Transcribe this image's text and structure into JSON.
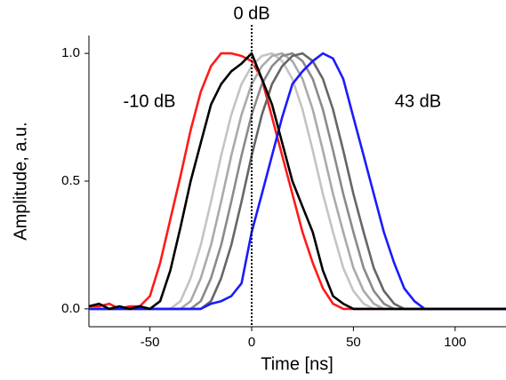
{
  "chart_data": {
    "type": "line",
    "xlabel": "Time [ns]",
    "ylabel": "Amplitude, a.u.",
    "x": [
      -80,
      -75,
      -70,
      -65,
      -60,
      -55,
      -50,
      -45,
      -40,
      -35,
      -30,
      -25,
      -20,
      -15,
      -10,
      -5,
      0,
      5,
      10,
      15,
      20,
      25,
      30,
      35,
      40,
      45,
      50,
      55,
      60,
      65,
      70,
      75,
      80,
      85,
      90,
      95,
      100,
      105,
      110,
      115,
      120,
      125
    ],
    "series": [
      {
        "name": "-10 dB",
        "color": "#ff1a1a",
        "values": [
          0.01,
          0.01,
          0.02,
          0.0,
          0.01,
          0.01,
          0.05,
          0.18,
          0.35,
          0.52,
          0.7,
          0.85,
          0.95,
          1.0,
          1.0,
          0.99,
          0.97,
          0.9,
          0.75,
          0.6,
          0.45,
          0.3,
          0.18,
          0.08,
          0.02,
          0,
          0,
          0,
          0,
          0,
          0,
          0,
          0,
          0,
          0,
          0,
          0,
          0,
          0,
          0,
          0,
          0
        ]
      },
      {
        "color": "#c4c4c4",
        "values": [
          0,
          0,
          0,
          0,
          0,
          0,
          0,
          0,
          0,
          0.03,
          0.12,
          0.25,
          0.42,
          0.6,
          0.76,
          0.88,
          0.95,
          0.99,
          1.0,
          0.97,
          0.9,
          0.78,
          0.62,
          0.45,
          0.3,
          0.16,
          0.07,
          0.02,
          0,
          0,
          0,
          0,
          0,
          0,
          0,
          0,
          0,
          0,
          0,
          0,
          0,
          0
        ]
      },
      {
        "color": "#aaaaaa",
        "values": [
          0,
          0,
          0,
          0,
          0,
          0,
          0,
          0,
          0,
          0,
          0.03,
          0.12,
          0.25,
          0.42,
          0.6,
          0.76,
          0.88,
          0.95,
          0.99,
          1.0,
          0.97,
          0.9,
          0.78,
          0.62,
          0.45,
          0.3,
          0.16,
          0.07,
          0.02,
          0,
          0,
          0,
          0,
          0,
          0,
          0,
          0,
          0,
          0,
          0,
          0,
          0
        ]
      },
      {
        "color": "#8a8a8a",
        "values": [
          0,
          0,
          0,
          0,
          0,
          0,
          0,
          0,
          0,
          0,
          0,
          0.03,
          0.12,
          0.25,
          0.42,
          0.6,
          0.76,
          0.88,
          0.95,
          0.99,
          1.0,
          0.97,
          0.9,
          0.78,
          0.62,
          0.45,
          0.3,
          0.16,
          0.07,
          0.02,
          0,
          0,
          0,
          0,
          0,
          0,
          0,
          0,
          0,
          0,
          0,
          0
        ]
      },
      {
        "color": "#666666",
        "values": [
          0,
          0,
          0,
          0,
          0,
          0,
          0,
          0,
          0,
          0,
          0,
          0,
          0.03,
          0.12,
          0.25,
          0.42,
          0.6,
          0.76,
          0.88,
          0.95,
          0.99,
          1.0,
          0.97,
          0.9,
          0.78,
          0.62,
          0.45,
          0.3,
          0.16,
          0.07,
          0.02,
          0,
          0,
          0,
          0,
          0,
          0,
          0,
          0,
          0,
          0,
          0
        ]
      },
      {
        "name": "43 dB",
        "color": "#1a1aff",
        "values": [
          0,
          0,
          0,
          0,
          0,
          0,
          0,
          0,
          0,
          0,
          0,
          0,
          0.02,
          0.03,
          0.05,
          0.1,
          0.3,
          0.45,
          0.6,
          0.75,
          0.88,
          0.93,
          0.97,
          1.0,
          0.98,
          0.9,
          0.75,
          0.6,
          0.45,
          0.3,
          0.18,
          0.08,
          0.03,
          0,
          0,
          0,
          0,
          0,
          0,
          0,
          0,
          0
        ]
      },
      {
        "name": "0 dB",
        "color": "#000000",
        "values": [
          0.01,
          0.02,
          0.0,
          0.01,
          0.0,
          0.01,
          0.0,
          0.03,
          0.15,
          0.32,
          0.5,
          0.65,
          0.8,
          0.88,
          0.93,
          0.96,
          1.0,
          0.9,
          0.8,
          0.65,
          0.5,
          0.4,
          0.3,
          0.15,
          0.05,
          0.02,
          0,
          0,
          0,
          0,
          0,
          0,
          0,
          0,
          0,
          0,
          0,
          0,
          0,
          0,
          0,
          0
        ]
      }
    ],
    "xlim": [
      -80,
      125
    ],
    "xticks": [
      -50,
      0,
      50,
      100
    ],
    "ylim": [
      -0.07,
      1.07
    ],
    "yticks": [
      {
        "value": 0,
        "label": "0.0"
      },
      0.5,
      {
        "value": 1,
        "label": "1.0"
      }
    ],
    "vline": 0
  }
}
